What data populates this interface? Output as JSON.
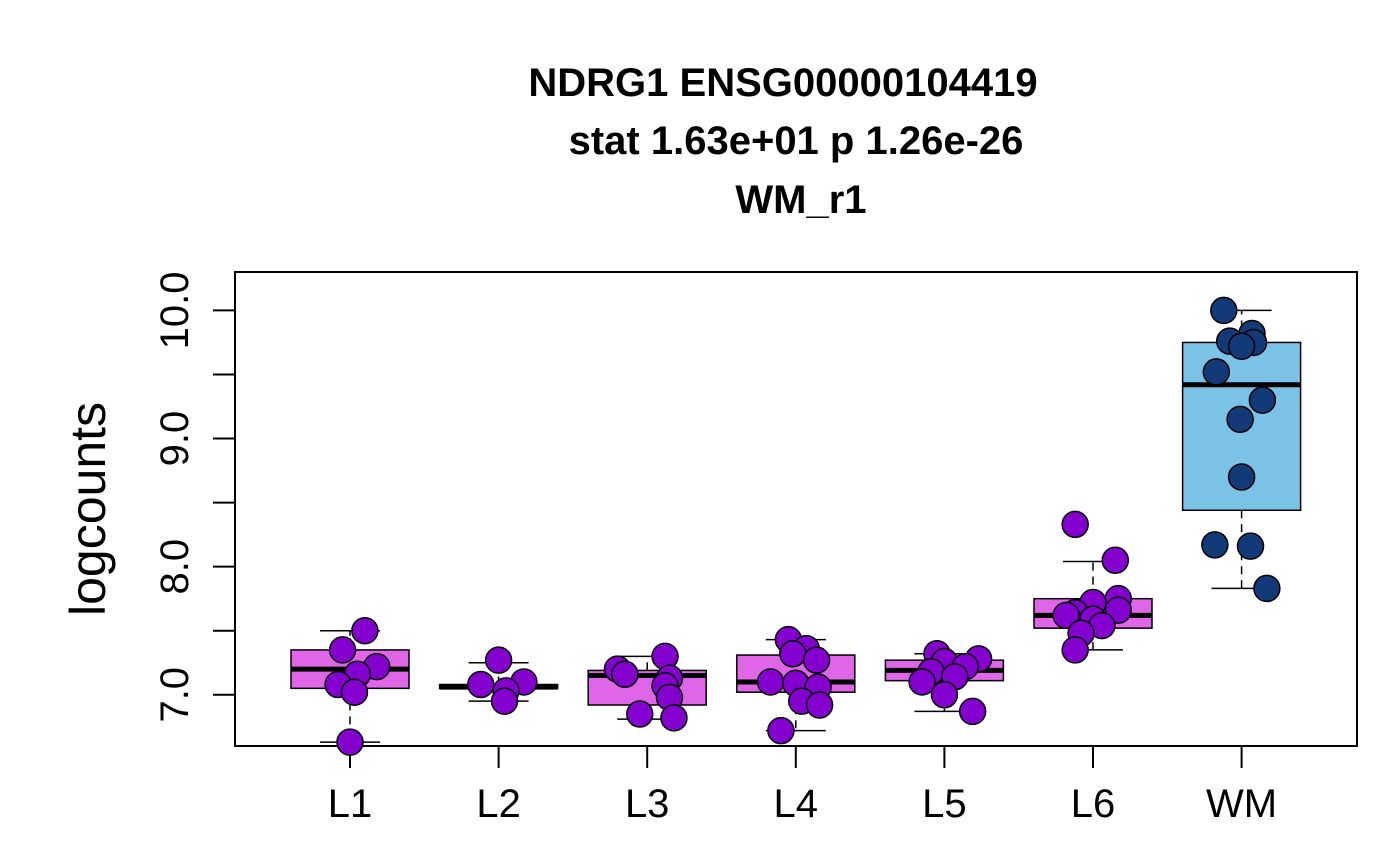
{
  "chart_data": {
    "type": "box",
    "title": [
      "NDRG1 ENSG00000104419",
      "stat 1.63e+01 p 1.26e-26",
      "WM_r1"
    ],
    "xlabel": "",
    "ylabel": "logcounts",
    "categories": [
      "L1",
      "L2",
      "L3",
      "L4",
      "L5",
      "L6",
      "WM"
    ],
    "y_ticks": [
      7.0,
      7.5,
      8.0,
      8.5,
      9.0,
      9.5,
      10.0
    ],
    "y_tick_labels": [
      "7.0",
      "",
      "8.0",
      "",
      "9.0",
      "",
      "10.0"
    ],
    "ylim": [
      6.6,
      10.3
    ],
    "grid": false,
    "colors": {
      "box_fill": [
        "#e066e8",
        "#e066e8",
        "#e066e8",
        "#e066e8",
        "#e066e8",
        "#e066e8",
        "#7ac3e6"
      ],
      "point_fill": [
        "#8400cf",
        "#8400cf",
        "#8400cf",
        "#8400cf",
        "#8400cf",
        "#8400cf",
        "#123a78"
      ],
      "outline": "#000000"
    },
    "boxes": [
      {
        "category": "L1",
        "q1": 7.05,
        "median": 7.2,
        "q3": 7.35,
        "whisker_low": 6.63,
        "whisker_high": 7.5
      },
      {
        "category": "L2",
        "q1": 7.05,
        "median": 7.06,
        "q3": 7.08,
        "whisker_low": 6.95,
        "whisker_high": 7.25
      },
      {
        "category": "L3",
        "q1": 6.92,
        "median": 7.15,
        "q3": 7.19,
        "whisker_low": 6.81,
        "whisker_high": 7.3
      },
      {
        "category": "L4",
        "q1": 7.02,
        "median": 7.1,
        "q3": 7.31,
        "whisker_low": 6.72,
        "whisker_high": 7.43
      },
      {
        "category": "L5",
        "q1": 7.11,
        "median": 7.19,
        "q3": 7.27,
        "whisker_low": 6.87,
        "whisker_high": 7.32
      },
      {
        "category": "L6",
        "q1": 7.52,
        "median": 7.62,
        "q3": 7.75,
        "whisker_low": 7.35,
        "whisker_high": 8.04
      },
      {
        "category": "WM",
        "q1": 8.44,
        "median": 9.42,
        "q3": 9.75,
        "whisker_low": 7.83,
        "whisker_high": 10.0
      }
    ],
    "points": [
      {
        "category": "L1",
        "values": [
          7.5,
          7.35,
          7.22,
          7.16,
          7.08,
          7.02,
          6.63
        ],
        "offsets": [
          0.1,
          -0.05,
          0.18,
          0.05,
          -0.08,
          0.03,
          0.0
        ]
      },
      {
        "category": "L2",
        "values": [
          7.27,
          7.1,
          7.08,
          7.03,
          6.95
        ],
        "offsets": [
          0.0,
          0.17,
          -0.12,
          0.05,
          0.04
        ]
      },
      {
        "category": "L3",
        "values": [
          7.3,
          7.2,
          7.16,
          7.13,
          7.07,
          6.98,
          6.85,
          6.82
        ],
        "offsets": [
          0.12,
          -0.2,
          -0.15,
          0.15,
          0.12,
          0.15,
          -0.05,
          0.18
        ]
      },
      {
        "category": "L4",
        "values": [
          7.43,
          7.36,
          7.32,
          7.27,
          7.1,
          7.09,
          7.06,
          6.95,
          6.92,
          6.72
        ],
        "offsets": [
          -0.05,
          0.07,
          -0.02,
          0.14,
          -0.17,
          0.0,
          0.15,
          0.04,
          0.16,
          -0.1
        ]
      },
      {
        "category": "L5",
        "values": [
          7.32,
          7.28,
          7.26,
          7.22,
          7.18,
          7.14,
          7.1,
          7.0,
          6.87
        ],
        "offsets": [
          -0.05,
          0.23,
          0.0,
          0.14,
          -0.09,
          0.07,
          -0.15,
          0.0,
          0.19
        ]
      },
      {
        "category": "L6",
        "values": [
          8.33,
          8.05,
          7.75,
          7.72,
          7.66,
          7.64,
          7.62,
          7.59,
          7.54,
          7.48,
          7.35
        ],
        "offsets": [
          -0.12,
          0.15,
          0.17,
          0.0,
          0.17,
          -0.12,
          -0.18,
          0.0,
          0.06,
          -0.08,
          -0.12
        ]
      },
      {
        "category": "WM",
        "values": [
          10.0,
          9.82,
          9.76,
          9.75,
          9.72,
          9.52,
          9.3,
          9.15,
          8.7,
          8.17,
          8.16,
          7.83
        ],
        "offsets": [
          -0.12,
          0.07,
          -0.08,
          0.08,
          0.0,
          -0.17,
          0.14,
          -0.01,
          0.0,
          -0.18,
          0.06,
          0.17
        ]
      }
    ]
  }
}
